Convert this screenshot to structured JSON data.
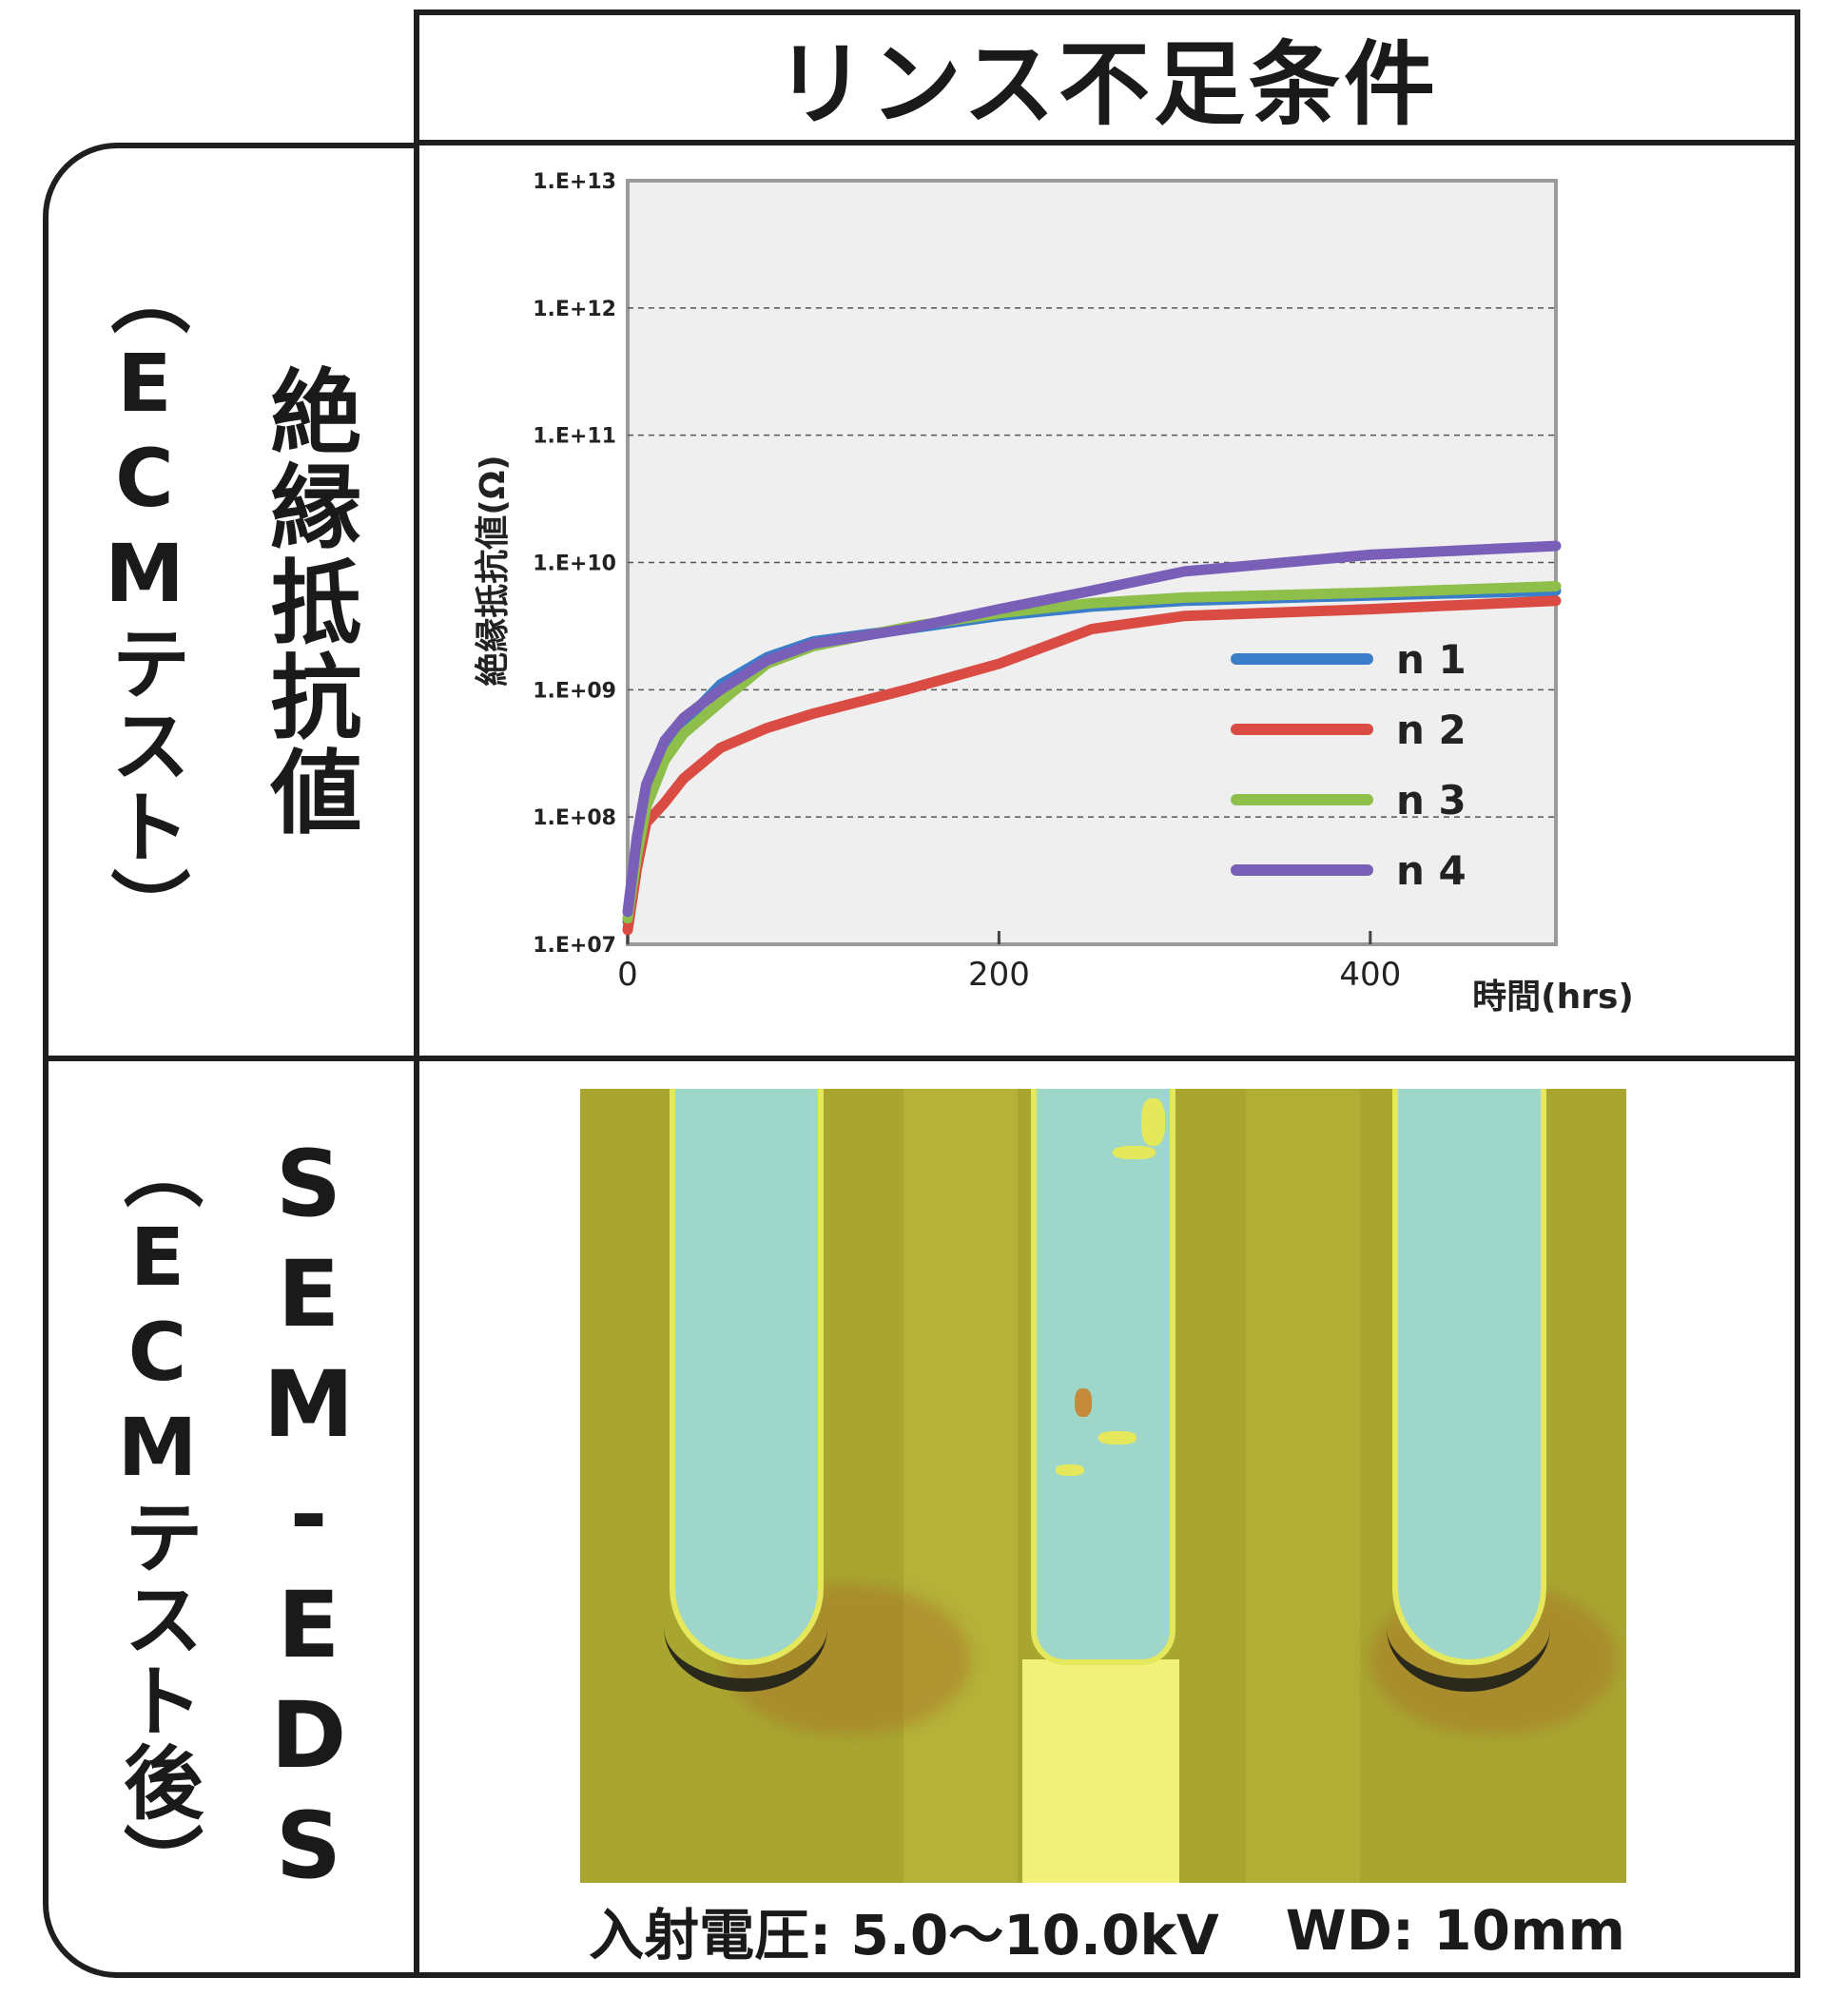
{
  "header": {
    "title": "リンス不足条件"
  },
  "rows": {
    "ir": {
      "main": "絶縁抵抗値",
      "sub": "（ECMテスト）"
    },
    "sem": {
      "main": "SEM-EDS",
      "sub": "（ECMテスト後）"
    }
  },
  "chart_data": {
    "type": "line",
    "ylabel": "絶縁抵抗値(Ω)",
    "xlabel": "時間(hrs)",
    "y_scale": "log",
    "ylim": [
      10000000.0,
      10000000000000.0
    ],
    "xlim": [
      0,
      500
    ],
    "x_ticks": [
      0,
      200,
      400
    ],
    "y_ticks": [
      "1.E+07",
      "1.E+08",
      "1.E+09",
      "1.E+10",
      "1.E+11",
      "1.E+12",
      "1.E+13"
    ],
    "grid": "horizontal dashed",
    "legend_position": "lower-right",
    "series": [
      {
        "name": "n 1",
        "color": "#3a7dc8",
        "x": [
          0,
          5,
          10,
          20,
          30,
          50,
          75,
          100,
          150,
          200,
          250,
          300,
          400,
          500
        ],
        "y": [
          15000000.0,
          60000000.0,
          150000000.0,
          350000000.0,
          550000000.0,
          1100000000.0,
          1800000000.0,
          2400000000.0,
          3000000000.0,
          3800000000.0,
          4500000000.0,
          5000000000.0,
          5500000000.0,
          6000000000.0
        ]
      },
      {
        "name": "n 2",
        "color": "#d94b43",
        "x": [
          0,
          5,
          10,
          20,
          30,
          50,
          75,
          100,
          150,
          200,
          250,
          300,
          400,
          500
        ],
        "y": [
          13000000.0,
          40000000.0,
          90000000.0,
          130000000.0,
          200000000.0,
          350000000.0,
          500000000.0,
          650000000.0,
          1000000000.0,
          1600000000.0,
          3000000000.0,
          3800000000.0,
          4300000000.0,
          5000000000.0
        ]
      },
      {
        "name": "n 3",
        "color": "#8dbf4a",
        "x": [
          0,
          5,
          10,
          20,
          30,
          50,
          75,
          100,
          150,
          200,
          250,
          300,
          400,
          500
        ],
        "y": [
          16000000.0,
          50000000.0,
          120000000.0,
          280000000.0,
          450000000.0,
          800000000.0,
          1600000000.0,
          2200000000.0,
          3100000000.0,
          4000000000.0,
          4800000000.0,
          5300000000.0,
          5800000000.0,
          6500000000.0
        ]
      },
      {
        "name": "n 4",
        "color": "#7a5fb8",
        "x": [
          0,
          5,
          10,
          20,
          30,
          50,
          75,
          100,
          150,
          200,
          250,
          300,
          400,
          500
        ],
        "y": [
          18000000.0,
          70000000.0,
          180000000.0,
          400000000.0,
          600000000.0,
          1000000000.0,
          1700000000.0,
          2300000000.0,
          3000000000.0,
          4300000000.0,
          6000000000.0,
          8500000000.0,
          11500000000.0,
          13500000000.0
        ]
      }
    ]
  },
  "caption": {
    "voltage": "入射電圧: 5.0～10.0kV",
    "wd": "WD: 10mm"
  }
}
